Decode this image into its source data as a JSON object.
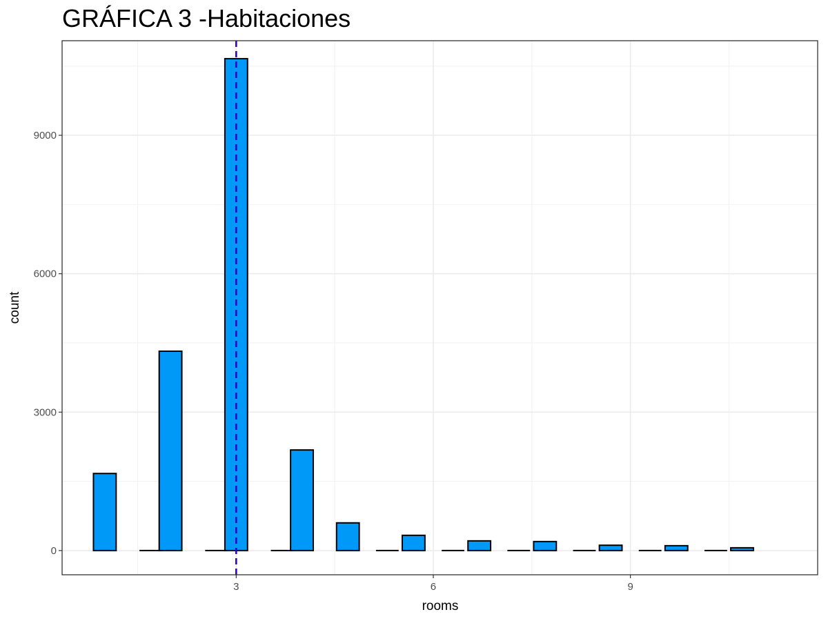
{
  "chart_data": {
    "type": "bar",
    "title": "GRÁFICA 3 -Habitaciones",
    "xlabel": "rooms",
    "ylabel": "count",
    "x_ticks": [
      "3",
      "6",
      "9"
    ],
    "y_ticks": [
      "0",
      "3000",
      "6000",
      "9000"
    ],
    "xlim": [
      0.35,
      11.85
    ],
    "ylim": [
      -525,
      11050
    ],
    "grid": true,
    "legend": "none",
    "bar_fill": "#0099f7",
    "bar_outline": "#000000",
    "mean_line": {
      "x": 3.0,
      "color": "#3300cc",
      "style": "dashed"
    },
    "bins": [
      {
        "x": 1,
        "count": 1670
      },
      {
        "x": 1.7,
        "count": 0
      },
      {
        "x": 2,
        "count": 4320
      },
      {
        "x": 2.7,
        "count": 0
      },
      {
        "x": 3,
        "count": 10660
      },
      {
        "x": 3.7,
        "count": 0
      },
      {
        "x": 4,
        "count": 2180
      },
      {
        "x": 4.7,
        "count": 600
      },
      {
        "x": 5.3,
        "count": 0
      },
      {
        "x": 5.7,
        "count": 330
      },
      {
        "x": 6.3,
        "count": 0
      },
      {
        "x": 6.7,
        "count": 210
      },
      {
        "x": 7.3,
        "count": 0
      },
      {
        "x": 7.7,
        "count": 195
      },
      {
        "x": 8.3,
        "count": 0
      },
      {
        "x": 8.7,
        "count": 115
      },
      {
        "x": 9.3,
        "count": 0
      },
      {
        "x": 9.7,
        "count": 105
      },
      {
        "x": 10.3,
        "count": 0
      },
      {
        "x": 10.7,
        "count": 60
      }
    ],
    "bin_width": 0.345
  }
}
